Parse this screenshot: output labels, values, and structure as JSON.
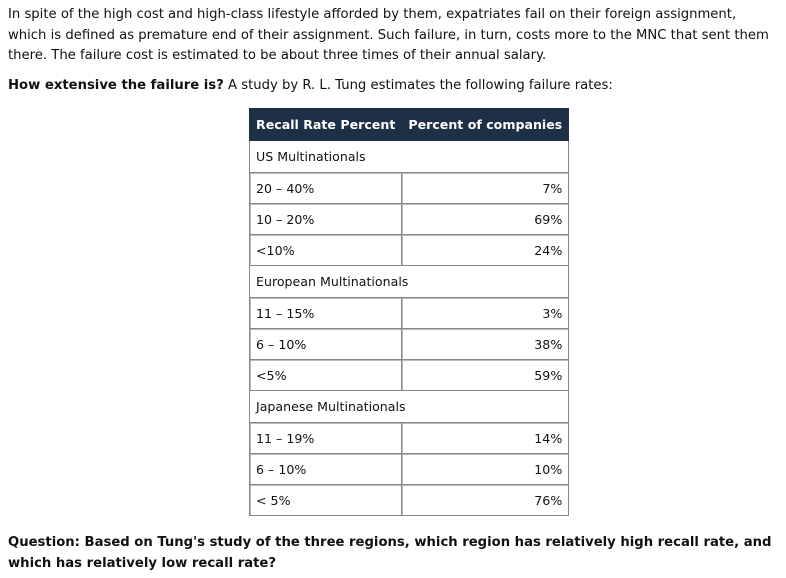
{
  "intro_paragraph": "In spite of the high cost and high-class lifestyle afforded by them, expatriates fail on their foreign assignment, which is defined as premature end of their assignment. Such failure, in turn, costs more to the MNC that sent them there.  The failure cost is estimated to be about three times of their annual salary.",
  "lead": {
    "bold": "How extensive the failure is?",
    "rest": " A study by R. L. Tung estimates the following failure rates:"
  },
  "table": {
    "headers": [
      "Recall Rate Percent",
      "Percent of companies"
    ],
    "regions": [
      {
        "name": "US Multinationals",
        "rows": [
          {
            "rate": "20 – 40%",
            "percent": "7%"
          },
          {
            "rate": "10 – 20%",
            "percent": "69%"
          },
          {
            "rate": "<10%",
            "percent": "24%"
          }
        ]
      },
      {
        "name": "European Multinationals",
        "rows": [
          {
            "rate": "11 – 15%",
            "percent": "3%"
          },
          {
            "rate": "6 – 10%",
            "percent": "38%"
          },
          {
            "rate": "<5%",
            "percent": "59%"
          }
        ]
      },
      {
        "name": "Japanese Multinationals",
        "rows": [
          {
            "rate": "11 – 19%",
            "percent": "14%"
          },
          {
            "rate": "6 – 10%",
            "percent": "10%"
          },
          {
            "rate": "< 5%",
            "percent": "76%"
          }
        ]
      }
    ]
  },
  "question": "Question: Based on Tung's study of the three regions, which region has relatively high recall rate, and which has relatively low recall rate?"
}
